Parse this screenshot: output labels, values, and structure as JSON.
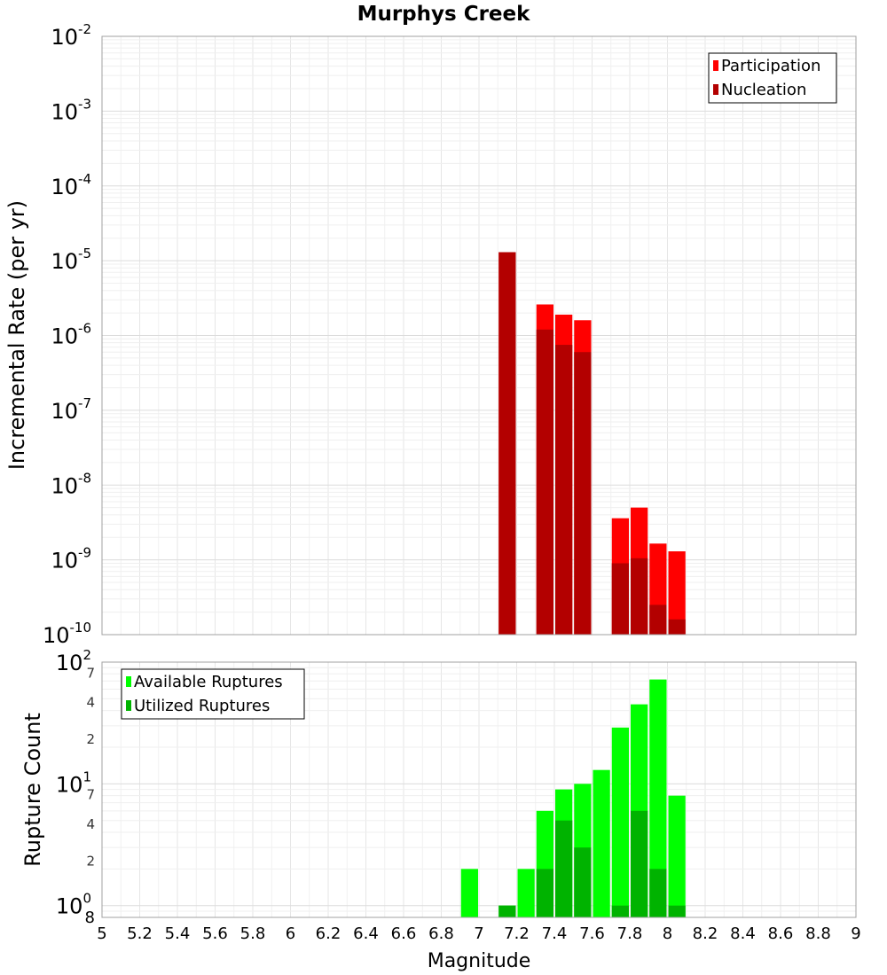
{
  "chart_data": {
    "type": "bar",
    "title": "Murphys Creek",
    "xlabel": "Magnitude",
    "xlim": [
      5,
      9
    ],
    "x_ticks": [
      "5",
      "5.2",
      "5.4",
      "5.6",
      "5.8",
      "6",
      "6.2",
      "6.4",
      "6.6",
      "6.8",
      "7",
      "7.2",
      "7.4",
      "7.6",
      "7.8",
      "8",
      "8.2",
      "8.4",
      "8.6",
      "8.8",
      "9"
    ],
    "panels": [
      {
        "name": "rate",
        "ylabel": "Incremental Rate (per yr)",
        "yscale": "log",
        "ylim": [
          1e-10,
          0.01
        ],
        "decade_ticks": [
          {
            "base": "10",
            "exp": "-10"
          },
          {
            "base": "10",
            "exp": "-9"
          },
          {
            "base": "10",
            "exp": "-8"
          },
          {
            "base": "10",
            "exp": "-7"
          },
          {
            "base": "10",
            "exp": "-6"
          },
          {
            "base": "10",
            "exp": "-5"
          },
          {
            "base": "10",
            "exp": "-4"
          },
          {
            "base": "10",
            "exp": "-3"
          },
          {
            "base": "10",
            "exp": "-2"
          }
        ],
        "legend": {
          "placement": "top-right",
          "entries": [
            "Participation",
            "Nucleation"
          ]
        },
        "series": [
          {
            "name": "Participation",
            "color": "#ff0000",
            "x": [
              7.15,
              7.35,
              7.45,
              7.55,
              7.75,
              7.85,
              7.95,
              8.05
            ],
            "values": [
              1.3e-05,
              2.6e-06,
              1.9e-06,
              1.6e-06,
              3.6e-09,
              5e-09,
              1.65e-09,
              1.3e-09
            ]
          },
          {
            "name": "Nucleation",
            "color": "#b30000",
            "x": [
              7.15,
              7.35,
              7.45,
              7.55,
              7.75,
              7.85,
              7.95,
              8.05
            ],
            "values": [
              1.3e-05,
              1.2e-06,
              7.5e-07,
              6e-07,
              9e-10,
              1.05e-09,
              2.5e-10,
              1.6e-10
            ]
          }
        ]
      },
      {
        "name": "count",
        "ylabel": "Rupture Count",
        "yscale": "log",
        "ylim": [
          0.8,
          100
        ],
        "decade_ticks": [
          {
            "base": "10",
            "exp": "0"
          },
          {
            "base": "10",
            "exp": "1"
          },
          {
            "base": "10",
            "exp": "2"
          }
        ],
        "minor_ticks": [
          {
            "value": 0.8,
            "label": "8"
          },
          {
            "value": 2,
            "label": "2"
          },
          {
            "value": 4,
            "label": "4"
          },
          {
            "value": 7,
            "label": "7"
          },
          {
            "value": 20,
            "label": "2"
          },
          {
            "value": 40,
            "label": "4"
          },
          {
            "value": 70,
            "label": "7"
          }
        ],
        "legend": {
          "placement": "top-left",
          "entries": [
            "Available Ruptures",
            "Utilized Ruptures"
          ]
        },
        "series": [
          {
            "name": "Available Ruptures",
            "color": "#00ff00",
            "x": [
              6.95,
              7.15,
              7.25,
              7.35,
              7.45,
              7.55,
              7.65,
              7.75,
              7.85,
              7.95,
              8.05
            ],
            "values": [
              2,
              1,
              2,
              6,
              9,
              10,
              13,
              29,
              45,
              72,
              8
            ]
          },
          {
            "name": "Utilized Ruptures",
            "color": "#00b300",
            "x": [
              7.15,
              7.35,
              7.45,
              7.55,
              7.75,
              7.85,
              7.95,
              8.05
            ],
            "values": [
              1,
              2,
              5,
              3,
              1,
              6,
              2,
              1
            ]
          }
        ]
      }
    ]
  }
}
